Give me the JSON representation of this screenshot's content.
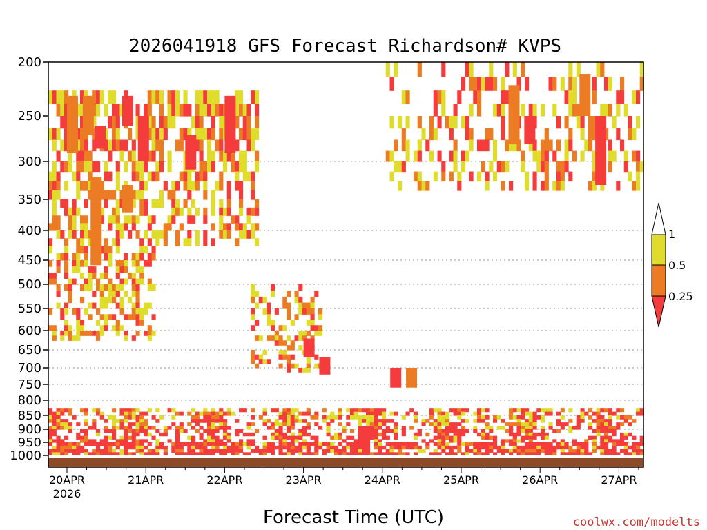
{
  "chart_data": {
    "type": "heatmap",
    "title": "2026041918 GFS Forecast Richardson# KVPS",
    "xlabel": "Forecast Time (UTC)",
    "ylabel": "",
    "credit": "coolwx.com/modelts",
    "y_scale": "log",
    "y_range": [
      1000,
      200
    ],
    "y_ticks": [
      200,
      250,
      300,
      350,
      400,
      450,
      500,
      550,
      600,
      650,
      700,
      750,
      800,
      850,
      900,
      950,
      1000
    ],
    "gridlines_dotted": [
      300,
      400,
      450,
      500,
      550,
      600,
      650,
      700,
      750,
      800,
      850,
      900,
      950
    ],
    "x_ticks": [
      "20APR",
      "21APR",
      "22APR",
      "23APR",
      "24APR",
      "25APR",
      "26APR",
      "27APR"
    ],
    "x_subtick": "2026",
    "colorbar": {
      "levels": [
        "1",
        "0.5",
        "0.25"
      ],
      "bins": [
        {
          "range": "0.5-1",
          "color": "#e0dc2c"
        },
        {
          "range": "0.25-0.5",
          "color": "#ec7c24"
        },
        {
          "range": "<0.25",
          "color": "#f43c3c"
        }
      ]
    },
    "colors": {
      "yellow": "#e0dc2c",
      "orange": "#ec7c24",
      "red": "#f43c3c",
      "ground": "#8c4a28"
    },
    "regions": [
      {
        "day": 0.0,
        "p_top": 230,
        "p_bot": 290,
        "class": "orange"
      },
      {
        "day": 0.2,
        "p_top": 230,
        "p_bot": 270,
        "class": "orange"
      },
      {
        "day": 0.35,
        "p_top": 260,
        "p_bot": 285,
        "class": "red"
      },
      {
        "day": 0.7,
        "p_top": 230,
        "p_bot": 260,
        "class": "red"
      },
      {
        "day": 0.9,
        "p_top": 250,
        "p_bot": 300,
        "class": "red"
      },
      {
        "day": 1.5,
        "p_top": 270,
        "p_bot": 310,
        "class": "red"
      },
      {
        "day": 2.0,
        "p_top": 230,
        "p_bot": 290,
        "class": "red"
      },
      {
        "day": 0.3,
        "p_top": 320,
        "p_bot": 460,
        "class": "orange"
      },
      {
        "day": 0.7,
        "p_top": 330,
        "p_bot": 370,
        "class": "orange"
      },
      {
        "day": 3.0,
        "p_top": 620,
        "p_bot": 670,
        "class": "red"
      },
      {
        "day": 3.2,
        "p_top": 670,
        "p_bot": 720,
        "class": "red"
      },
      {
        "day": 4.1,
        "p_top": 700,
        "p_bot": 760,
        "class": "red"
      },
      {
        "day": 4.3,
        "p_top": 700,
        "p_bot": 760,
        "class": "orange"
      },
      {
        "day": 5.6,
        "p_top": 220,
        "p_bot": 280,
        "class": "orange"
      },
      {
        "day": 5.8,
        "p_top": 250,
        "p_bot": 280,
        "class": "red"
      },
      {
        "day": 6.5,
        "p_top": 210,
        "p_bot": 250,
        "class": "orange"
      },
      {
        "day": 6.7,
        "p_top": 250,
        "p_bot": 330,
        "class": "red"
      }
    ]
  }
}
